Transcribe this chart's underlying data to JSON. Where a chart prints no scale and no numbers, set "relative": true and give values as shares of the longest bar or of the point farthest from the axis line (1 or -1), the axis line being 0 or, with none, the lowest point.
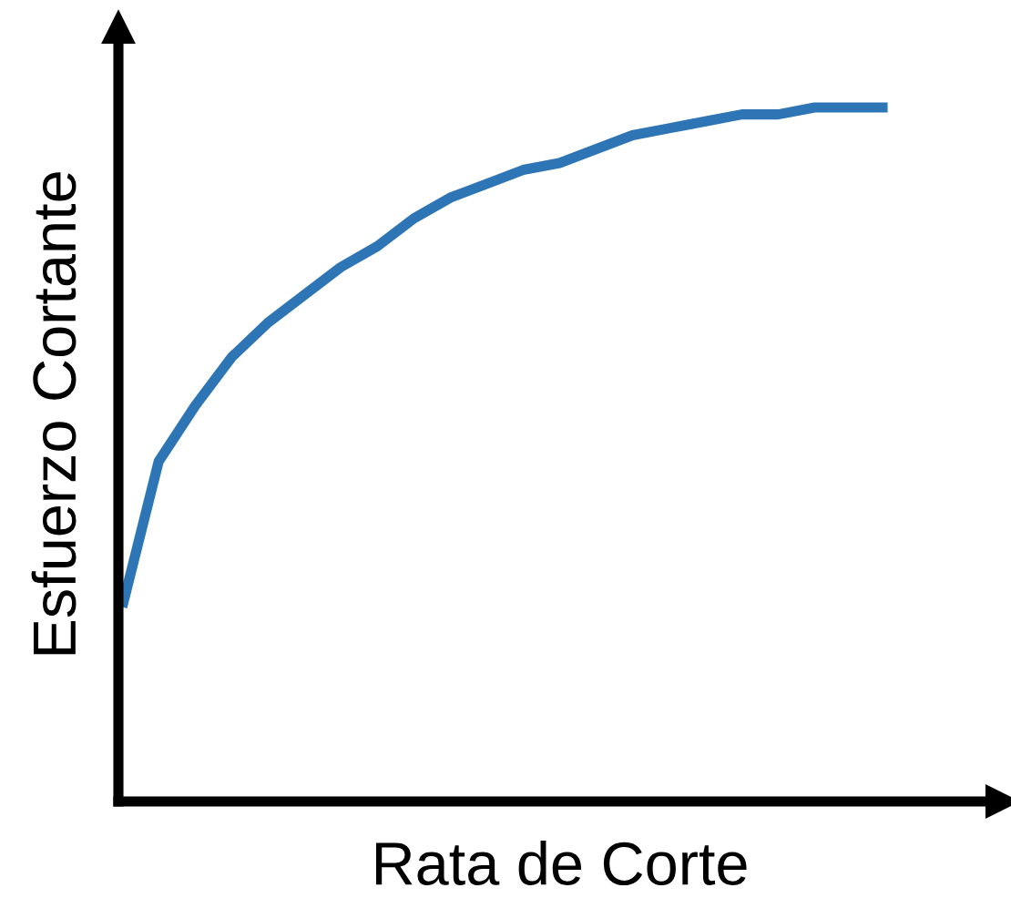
{
  "chart_data": {
    "type": "line",
    "relative": true,
    "xlabel": "Rata de Corte",
    "ylabel": "Esfuerzo Cortante",
    "categories": [
      null,
      null,
      null,
      null,
      null,
      null,
      null,
      null,
      null,
      null,
      null,
      null,
      null,
      null,
      null,
      null,
      null,
      null,
      null,
      null,
      null,
      null
    ],
    "series": [
      {
        "color": "#2e75b6",
        "values": [
          0.28,
          0.49,
          0.57,
          0.64,
          0.69,
          0.73,
          0.77,
          0.8,
          0.84,
          0.87,
          0.89,
          0.91,
          0.92,
          0.94,
          0.96,
          0.97,
          0.98,
          0.99,
          0.99,
          1.0,
          1.0,
          1.0
        ]
      }
    ],
    "grid": false
  }
}
